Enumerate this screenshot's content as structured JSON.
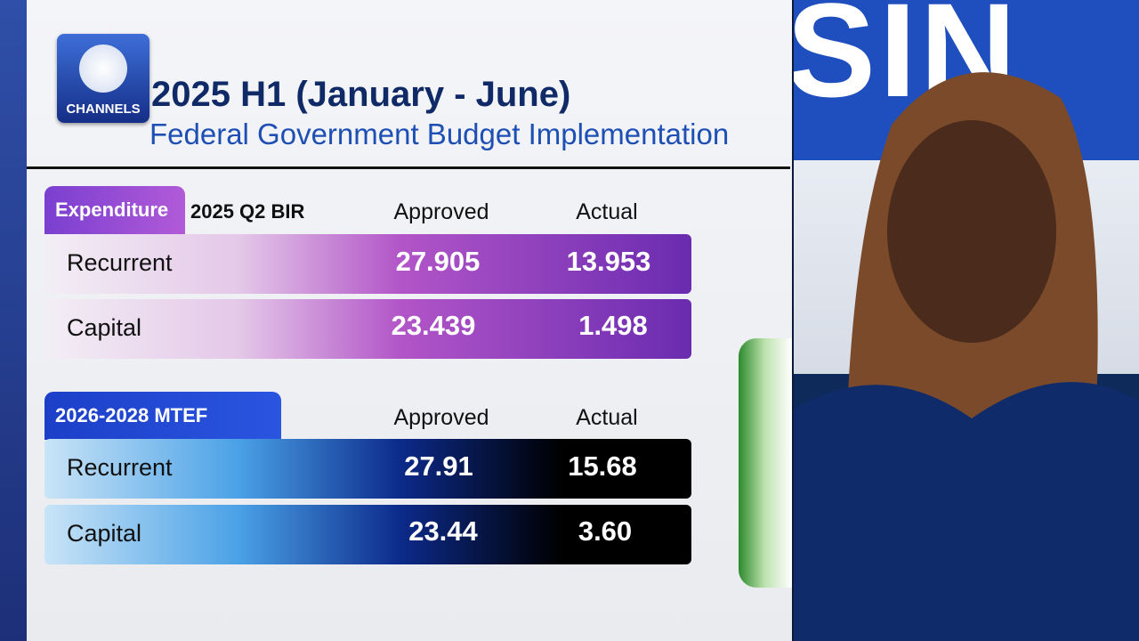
{
  "logo": {
    "text": "CHANNELS"
  },
  "header": {
    "title": "2025 H1 (January - June)",
    "subtitle": "Federal Government Budget Implementation"
  },
  "sections": [
    {
      "tab": "Expenditure",
      "label": "2025 Q2 BIR",
      "columns": [
        "Approved",
        "Actual"
      ],
      "rows": [
        [
          "Recurrent",
          "27.905",
          "13.953"
        ],
        [
          "Capital",
          "23.439",
          "1.498"
        ]
      ]
    },
    {
      "tab": "2026-2028 MTEF",
      "columns": [
        "Approved",
        "Actual"
      ],
      "rows": [
        [
          "Recurrent",
          "27.91",
          "15.68"
        ],
        [
          "Capital",
          "23.44",
          "3.60"
        ]
      ]
    }
  ],
  "backdrop": {
    "text": "SIN"
  }
}
